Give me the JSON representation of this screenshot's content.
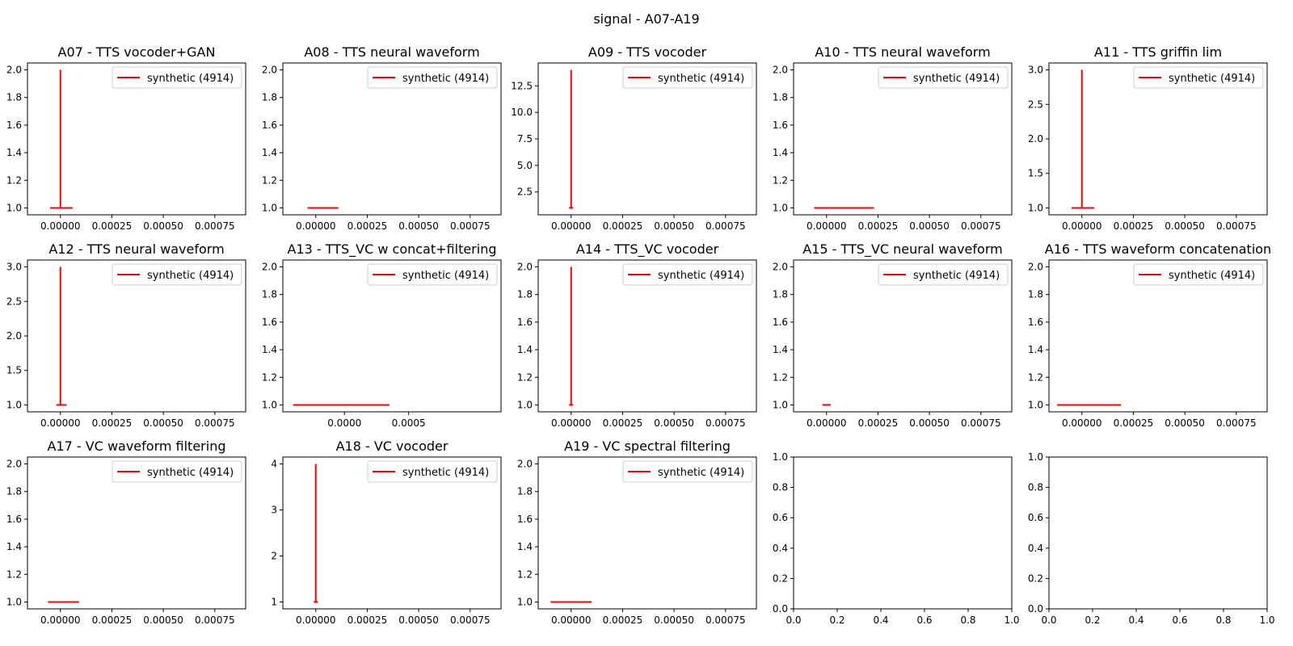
{
  "figure_title": "signal - A07-A19",
  "colors": {
    "series": "#ff0000",
    "axis": "#000000",
    "background": "#ffffff"
  },
  "chart_data": [
    {
      "type": "line",
      "title": "A07 - TTS vocoder+GAN",
      "xlim": [
        -0.00016,
        0.0009
      ],
      "ylim": [
        0.95,
        2.05
      ],
      "xticks": [
        0,
        0.00025,
        0.0005,
        0.00075
      ],
      "xtick_labels": [
        "0.00000",
        "0.00025",
        "0.00050",
        "0.00075"
      ],
      "yticks": [
        1.0,
        1.2,
        1.4,
        1.6,
        1.8,
        2.0
      ],
      "ytick_labels": [
        "1.0",
        "1.2",
        "1.4",
        "1.6",
        "1.8",
        "2.0"
      ],
      "legend": {
        "position": "top-right",
        "label": "synthetic (4914)"
      },
      "series": [
        {
          "name": "synthetic (4914)",
          "segments": [
            {
              "x": [
                -5e-05,
                6e-05
              ],
              "y": [
                1,
                1
              ]
            },
            {
              "x": [
                0,
                0
              ],
              "y": [
                1,
                2
              ]
            }
          ]
        }
      ]
    },
    {
      "type": "line",
      "title": "A08 - TTS neural waveform",
      "xlim": [
        -0.00016,
        0.0009
      ],
      "ylim": [
        0.95,
        2.05
      ],
      "xticks": [
        0,
        0.00025,
        0.0005,
        0.00075
      ],
      "xtick_labels": [
        "0.00000",
        "0.00025",
        "0.00050",
        "0.00075"
      ],
      "yticks": [
        1.0,
        1.2,
        1.4,
        1.6,
        1.8,
        2.0
      ],
      "ytick_labels": [
        "1.0",
        "1.2",
        "1.4",
        "1.6",
        "1.8",
        "2.0"
      ],
      "legend": {
        "position": "top-right",
        "label": "synthetic (4914)"
      },
      "series": [
        {
          "name": "synthetic (4914)",
          "segments": [
            {
              "x": [
                -4e-05,
                0.00011
              ],
              "y": [
                1,
                1
              ]
            }
          ]
        }
      ]
    },
    {
      "type": "line",
      "title": "A09 - TTS vocoder",
      "xlim": [
        -0.00016,
        0.0009
      ],
      "ylim": [
        0.35,
        14.65
      ],
      "xticks": [
        0,
        0.00025,
        0.0005,
        0.00075
      ],
      "xtick_labels": [
        "0.00000",
        "0.00025",
        "0.00050",
        "0.00075"
      ],
      "yticks": [
        2.5,
        5.0,
        7.5,
        10.0,
        12.5
      ],
      "ytick_labels": [
        "2.5",
        "5.0",
        "7.5",
        "10.0",
        "12.5"
      ],
      "legend": {
        "position": "top-right",
        "label": "synthetic (4914)"
      },
      "series": [
        {
          "name": "synthetic (4914)",
          "segments": [
            {
              "x": [
                -1e-05,
                1e-05
              ],
              "y": [
                1,
                1
              ]
            },
            {
              "x": [
                0,
                0
              ],
              "y": [
                1,
                14
              ]
            }
          ]
        }
      ]
    },
    {
      "type": "line",
      "title": "A10 - TTS neural waveform",
      "xlim": [
        -0.00016,
        0.0009
      ],
      "ylim": [
        0.95,
        2.05
      ],
      "xticks": [
        0,
        0.00025,
        0.0005,
        0.00075
      ],
      "xtick_labels": [
        "0.00000",
        "0.00025",
        "0.00050",
        "0.00075"
      ],
      "yticks": [
        1.0,
        1.2,
        1.4,
        1.6,
        1.8,
        2.0
      ],
      "ytick_labels": [
        "1.0",
        "1.2",
        "1.4",
        "1.6",
        "1.8",
        "2.0"
      ],
      "legend": {
        "position": "top-right",
        "label": "synthetic (4914)"
      },
      "series": [
        {
          "name": "synthetic (4914)",
          "segments": [
            {
              "x": [
                -6e-05,
                0.00023
              ],
              "y": [
                1,
                1
              ]
            }
          ]
        }
      ]
    },
    {
      "type": "line",
      "title": "A11 - TTS griffin lim",
      "xlim": [
        -0.00016,
        0.0009
      ],
      "ylim": [
        0.9,
        3.1
      ],
      "xticks": [
        0,
        0.00025,
        0.0005,
        0.00075
      ],
      "xtick_labels": [
        "0.00000",
        "0.00025",
        "0.00050",
        "0.00075"
      ],
      "yticks": [
        1.0,
        1.5,
        2.0,
        2.5,
        3.0
      ],
      "ytick_labels": [
        "1.0",
        "1.5",
        "2.0",
        "2.5",
        "3.0"
      ],
      "legend": {
        "position": "top-right",
        "label": "synthetic (4914)"
      },
      "series": [
        {
          "name": "synthetic (4914)",
          "segments": [
            {
              "x": [
                -5e-05,
                6e-05
              ],
              "y": [
                1,
                1
              ]
            },
            {
              "x": [
                0,
                0
              ],
              "y": [
                1,
                3
              ]
            }
          ]
        }
      ]
    },
    {
      "type": "line",
      "title": "A12 - TTS neural waveform",
      "xlim": [
        -0.00016,
        0.0009
      ],
      "ylim": [
        0.9,
        3.1
      ],
      "xticks": [
        0,
        0.00025,
        0.0005,
        0.00075
      ],
      "xtick_labels": [
        "0.00000",
        "0.00025",
        "0.00050",
        "0.00075"
      ],
      "yticks": [
        1.0,
        1.5,
        2.0,
        2.5,
        3.0
      ],
      "ytick_labels": [
        "1.0",
        "1.5",
        "2.0",
        "2.5",
        "3.0"
      ],
      "legend": {
        "position": "top-right",
        "label": "synthetic (4914)"
      },
      "series": [
        {
          "name": "synthetic (4914)",
          "segments": [
            {
              "x": [
                -2e-05,
                3e-05
              ],
              "y": [
                1,
                1
              ]
            },
            {
              "x": [
                0,
                0
              ],
              "y": [
                1,
                3
              ]
            }
          ]
        }
      ]
    },
    {
      "type": "line",
      "title": "A13 - TTS_VC w concat+filtering",
      "xlim": [
        -0.00048,
        0.00122
      ],
      "ylim": [
        0.95,
        2.05
      ],
      "xticks": [
        0,
        0.0005
      ],
      "xtick_labels": [
        "0.0000",
        "0.0005"
      ],
      "yticks": [
        1.0,
        1.2,
        1.4,
        1.6,
        1.8,
        2.0
      ],
      "ytick_labels": [
        "1.0",
        "1.2",
        "1.4",
        "1.6",
        "1.8",
        "2.0"
      ],
      "legend": {
        "position": "top-right",
        "label": "synthetic (4914)"
      },
      "series": [
        {
          "name": "synthetic (4914)",
          "segments": [
            {
              "x": [
                -0.0004,
                0.00035
              ],
              "y": [
                1,
                1
              ]
            }
          ]
        }
      ]
    },
    {
      "type": "line",
      "title": "A14 - TTS_VC vocoder",
      "xlim": [
        -0.00016,
        0.0009
      ],
      "ylim": [
        0.95,
        2.05
      ],
      "xticks": [
        0,
        0.00025,
        0.0005,
        0.00075
      ],
      "xtick_labels": [
        "0.00000",
        "0.00025",
        "0.00050",
        "0.00075"
      ],
      "yticks": [
        1.0,
        1.2,
        1.4,
        1.6,
        1.8,
        2.0
      ],
      "ytick_labels": [
        "1.0",
        "1.2",
        "1.4",
        "1.6",
        "1.8",
        "2.0"
      ],
      "legend": {
        "position": "top-right",
        "label": "synthetic (4914)"
      },
      "series": [
        {
          "name": "synthetic (4914)",
          "segments": [
            {
              "x": [
                -1e-05,
                1e-05
              ],
              "y": [
                1,
                1
              ]
            },
            {
              "x": [
                0,
                0
              ],
              "y": [
                1,
                2
              ]
            }
          ]
        }
      ]
    },
    {
      "type": "line",
      "title": "A15 - TTS_VC neural waveform",
      "xlim": [
        -0.00016,
        0.0009
      ],
      "ylim": [
        0.95,
        2.05
      ],
      "xticks": [
        0,
        0.00025,
        0.0005,
        0.00075
      ],
      "xtick_labels": [
        "0.00000",
        "0.00025",
        "0.00050",
        "0.00075"
      ],
      "yticks": [
        1.0,
        1.2,
        1.4,
        1.6,
        1.8,
        2.0
      ],
      "ytick_labels": [
        "1.0",
        "1.2",
        "1.4",
        "1.6",
        "1.8",
        "2.0"
      ],
      "legend": {
        "position": "top-right",
        "label": "synthetic (4914)"
      },
      "series": [
        {
          "name": "synthetic (4914)",
          "segments": [
            {
              "x": [
                -2e-05,
                2e-05
              ],
              "y": [
                1,
                1
              ]
            }
          ]
        }
      ]
    },
    {
      "type": "line",
      "title": "A16 - TTS waveform concatenation",
      "xlim": [
        -0.00016,
        0.0009
      ],
      "ylim": [
        0.95,
        2.05
      ],
      "xticks": [
        0,
        0.00025,
        0.0005,
        0.00075
      ],
      "xtick_labels": [
        "0.00000",
        "0.00025",
        "0.00050",
        "0.00075"
      ],
      "yticks": [
        1.0,
        1.2,
        1.4,
        1.6,
        1.8,
        2.0
      ],
      "ytick_labels": [
        "1.0",
        "1.2",
        "1.4",
        "1.6",
        "1.8",
        "2.0"
      ],
      "legend": {
        "position": "top-right",
        "label": "synthetic (4914)"
      },
      "series": [
        {
          "name": "synthetic (4914)",
          "segments": [
            {
              "x": [
                -0.00012,
                0.00019
              ],
              "y": [
                1,
                1
              ]
            }
          ]
        }
      ]
    },
    {
      "type": "line",
      "title": "A17 - VC waveform filtering",
      "xlim": [
        -0.00016,
        0.0009
      ],
      "ylim": [
        0.95,
        2.05
      ],
      "xticks": [
        0,
        0.00025,
        0.0005,
        0.00075
      ],
      "xtick_labels": [
        "0.00000",
        "0.00025",
        "0.00050",
        "0.00075"
      ],
      "yticks": [
        1.0,
        1.2,
        1.4,
        1.6,
        1.8,
        2.0
      ],
      "ytick_labels": [
        "1.0",
        "1.2",
        "1.4",
        "1.6",
        "1.8",
        "2.0"
      ],
      "legend": {
        "position": "top-right",
        "label": "synthetic (4914)"
      },
      "series": [
        {
          "name": "synthetic (4914)",
          "segments": [
            {
              "x": [
                -6e-05,
                9e-05
              ],
              "y": [
                1,
                1
              ]
            }
          ]
        }
      ]
    },
    {
      "type": "line",
      "title": "A18 - VC vocoder",
      "xlim": [
        -0.00016,
        0.0009
      ],
      "ylim": [
        0.85,
        4.15
      ],
      "xticks": [
        0,
        0.00025,
        0.0005,
        0.00075
      ],
      "xtick_labels": [
        "0.00000",
        "0.00025",
        "0.00050",
        "0.00075"
      ],
      "yticks": [
        1,
        2,
        3,
        4
      ],
      "ytick_labels": [
        "1",
        "2",
        "3",
        "4"
      ],
      "legend": {
        "position": "top-right",
        "label": "synthetic (4914)"
      },
      "series": [
        {
          "name": "synthetic (4914)",
          "segments": [
            {
              "x": [
                -1e-05,
                1e-05
              ],
              "y": [
                1,
                1
              ]
            },
            {
              "x": [
                0,
                0
              ],
              "y": [
                1,
                4
              ]
            }
          ]
        }
      ]
    },
    {
      "type": "line",
      "title": "A19 - VC spectral filtering",
      "xlim": [
        -0.00016,
        0.0009
      ],
      "ylim": [
        0.95,
        2.05
      ],
      "xticks": [
        0,
        0.00025,
        0.0005,
        0.00075
      ],
      "xtick_labels": [
        "0.00000",
        "0.00025",
        "0.00050",
        "0.00075"
      ],
      "yticks": [
        1.0,
        1.2,
        1.4,
        1.6,
        1.8,
        2.0
      ],
      "ytick_labels": [
        "1.0",
        "1.2",
        "1.4",
        "1.6",
        "1.8",
        "2.0"
      ],
      "legend": {
        "position": "top-right",
        "label": "synthetic (4914)"
      },
      "series": [
        {
          "name": "synthetic (4914)",
          "segments": [
            {
              "x": [
                -0.0001,
                0.0001
              ],
              "y": [
                1,
                1
              ]
            }
          ]
        }
      ]
    },
    {
      "type": "line",
      "title": "",
      "xlim": [
        0,
        1
      ],
      "ylim": [
        0,
        1
      ],
      "xticks": [
        0,
        0.2,
        0.4,
        0.6,
        0.8,
        1.0
      ],
      "xtick_labels": [
        "0.0",
        "0.2",
        "0.4",
        "0.6",
        "0.8",
        "1.0"
      ],
      "yticks": [
        0,
        0.2,
        0.4,
        0.6,
        0.8,
        1.0
      ],
      "ytick_labels": [
        "0.0",
        "0.2",
        "0.4",
        "0.6",
        "0.8",
        "1.0"
      ],
      "series": []
    },
    {
      "type": "line",
      "title": "",
      "xlim": [
        0,
        1
      ],
      "ylim": [
        0,
        1
      ],
      "xticks": [
        0,
        0.2,
        0.4,
        0.6,
        0.8,
        1.0
      ],
      "xtick_labels": [
        "0.0",
        "0.2",
        "0.4",
        "0.6",
        "0.8",
        "1.0"
      ],
      "yticks": [
        0,
        0.2,
        0.4,
        0.6,
        0.8,
        1.0
      ],
      "ytick_labels": [
        "0.0",
        "0.2",
        "0.4",
        "0.6",
        "0.8",
        "1.0"
      ],
      "series": []
    }
  ]
}
